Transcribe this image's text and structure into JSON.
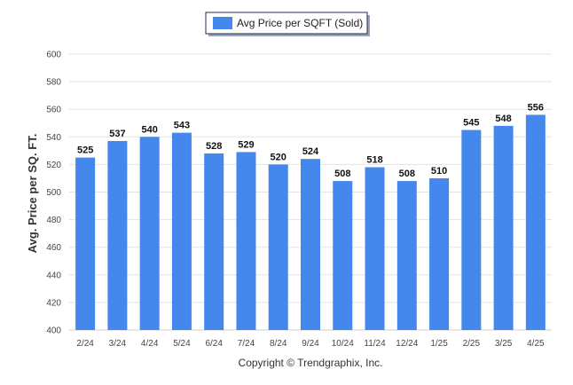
{
  "chart_data": {
    "type": "bar",
    "legend": {
      "label": "Avg Price per SQFT (Sold)",
      "placement": "top-center"
    },
    "ylabel": "Avg. Price per SQ. FT.",
    "xlabel": "",
    "ylim": [
      400,
      600
    ],
    "yticks": [
      400,
      420,
      440,
      460,
      480,
      500,
      520,
      540,
      560,
      580,
      600
    ],
    "grid": true,
    "bar_color": "#4488ee",
    "categories": [
      "2/24",
      "3/24",
      "4/24",
      "5/24",
      "6/24",
      "7/24",
      "8/24",
      "9/24",
      "10/24",
      "11/24",
      "12/24",
      "1/25",
      "2/25",
      "3/25",
      "4/25"
    ],
    "series": [
      {
        "name": "Avg Price per SQFT (Sold)",
        "values": [
          525,
          537,
          540,
          543,
          528,
          529,
          520,
          524,
          508,
          518,
          508,
          510,
          545,
          548,
          556
        ]
      }
    ],
    "data_labels": true
  },
  "footer": {
    "copyright": "Copyright © Trendgraphix, Inc."
  }
}
